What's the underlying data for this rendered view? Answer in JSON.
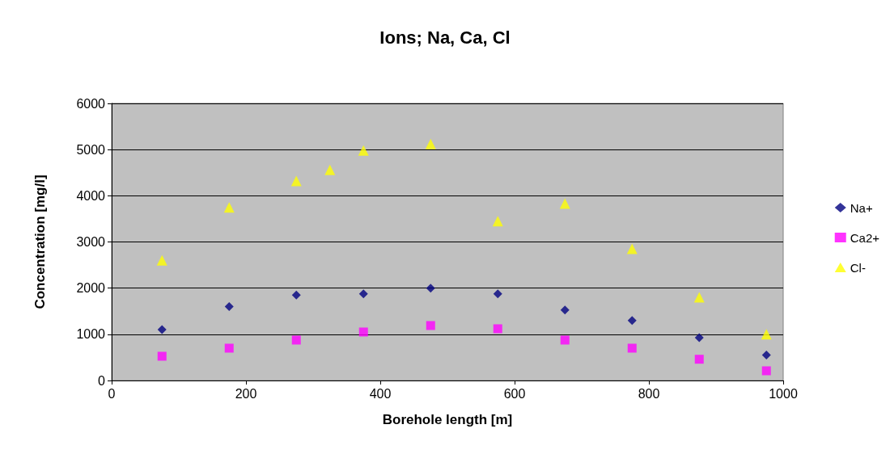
{
  "chart_data": {
    "type": "scatter",
    "title": "Ions; Na, Ca, Cl",
    "xlabel": "Borehole length [m]",
    "ylabel": "Concentration [mg/l]",
    "xlim": [
      0,
      1000
    ],
    "xticks": [
      0,
      200,
      400,
      600,
      800,
      1000
    ],
    "ylim": [
      0,
      6000
    ],
    "yticks": [
      0,
      1000,
      2000,
      3000,
      4000,
      5000,
      6000
    ],
    "grid": "y",
    "legend": "right",
    "series": [
      {
        "name": "Na+",
        "color": "#000080",
        "marker": "diamond",
        "x": [
          75,
          175,
          275,
          375,
          475,
          575,
          675,
          775,
          875,
          975
        ],
        "values": [
          1100,
          1600,
          1850,
          1875,
          2000,
          1875,
          1525,
          1300,
          925,
          550
        ]
      },
      {
        "name": "Ca2+",
        "color": "#ff00ff",
        "marker": "square",
        "x": [
          75,
          175,
          275,
          375,
          475,
          575,
          675,
          775,
          875,
          975
        ],
        "values": [
          525,
          700,
          875,
          1050,
          1190,
          1120,
          875,
          700,
          460,
          210
        ]
      },
      {
        "name": "Cl-",
        "color": "#ffff00",
        "marker": "triangle",
        "x": [
          75,
          175,
          275,
          325,
          375,
          475,
          575,
          675,
          775,
          875,
          975
        ],
        "values": [
          2600,
          3750,
          4320,
          4560,
          4980,
          5120,
          3450,
          3830,
          2850,
          1800,
          1000
        ]
      }
    ]
  }
}
